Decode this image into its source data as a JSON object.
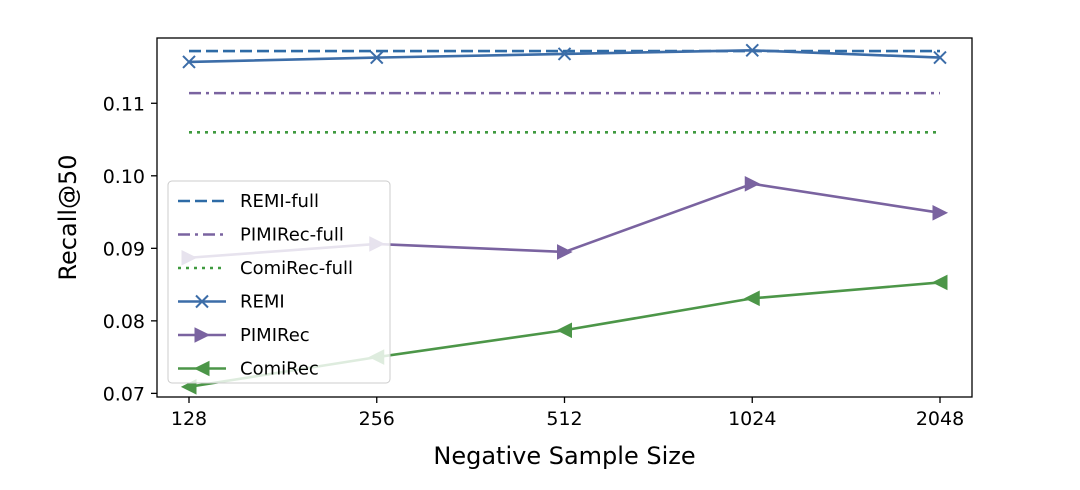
{
  "chart_data": {
    "type": "line",
    "title": "",
    "xlabel": "Negative Sample Size",
    "ylabel": "Recall@50",
    "categories": [
      "128",
      "256",
      "512",
      "1024",
      "2048"
    ],
    "ylim": [
      0.0695,
      0.119
    ],
    "yticks": [
      0.07,
      0.08,
      0.09,
      0.1,
      0.11
    ],
    "ytick_labels": [
      "0.07",
      "0.08",
      "0.09",
      "0.10",
      "0.11"
    ],
    "grid": false,
    "legend_position": "lower-left",
    "series": [
      {
        "name": "REMI-full",
        "color": "#2e6ba6",
        "style": "dashed",
        "marker": "none",
        "values": [
          0.1172,
          0.1172,
          0.1172,
          0.1172,
          0.1172
        ]
      },
      {
        "name": "PIMIRec-full",
        "color": "#7a63a0",
        "style": "dashdot",
        "marker": "none",
        "values": [
          0.1114,
          0.1114,
          0.1114,
          0.1114,
          0.1114
        ]
      },
      {
        "name": "ComiRec-full",
        "color": "#3f9a3f",
        "style": "dotted",
        "marker": "none",
        "values": [
          0.106,
          0.106,
          0.106,
          0.106,
          0.106
        ]
      },
      {
        "name": "REMI",
        "color": "#3c6da8",
        "style": "solid",
        "marker": "x",
        "values": [
          0.1157,
          0.1163,
          0.1168,
          0.1173,
          0.1163
        ]
      },
      {
        "name": "PIMIRec",
        "color": "#7a63a0",
        "style": "solid",
        "marker": "triangle-right",
        "values": [
          0.0887,
          0.0906,
          0.0895,
          0.0989,
          0.0949
        ]
      },
      {
        "name": "ComiRec",
        "color": "#4c9648",
        "style": "solid",
        "marker": "triangle-left",
        "values": [
          0.0709,
          0.075,
          0.0787,
          0.0831,
          0.0853
        ]
      }
    ]
  }
}
